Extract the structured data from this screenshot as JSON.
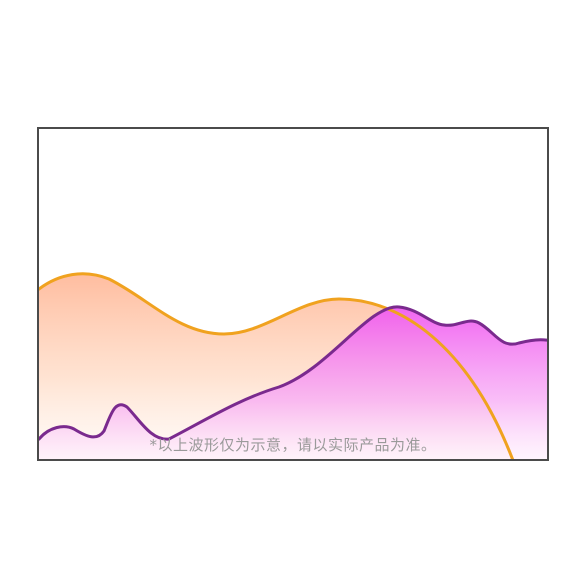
{
  "disclaimer": {
    "text": "*以上波形仅为示意，请以实际产品为准。"
  },
  "colors": {
    "frame_border": "#4b4b4b",
    "orange_wave_stroke": "#f0a21f",
    "purple_wave_stroke": "#7a2a8e",
    "magenta_fill": "#ee7ff0",
    "peach_fill": "#ffc3a0",
    "caption_text": "#9a9a9a"
  },
  "icons": {
    "waveform": "layered-waveform-illustration"
  }
}
